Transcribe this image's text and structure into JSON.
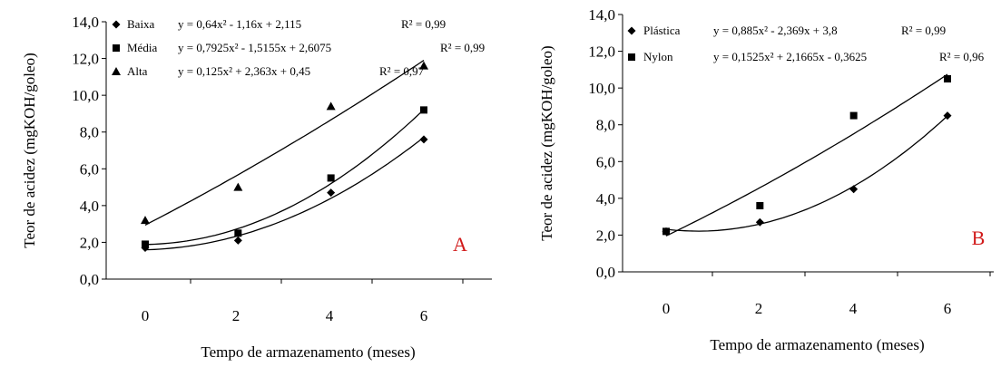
{
  "chart_data": [
    {
      "type": "scatter",
      "panel_label": "A",
      "xlabel": "Tempo de armazenamento (meses)",
      "ylabel": "Teor de acidez (mgKOH/goleo)",
      "x": [
        0,
        2,
        4,
        6
      ],
      "xticks": [
        "0",
        "2",
        "4",
        "6"
      ],
      "ylim": [
        0,
        14
      ],
      "yticks": [
        "0,0",
        "2,0",
        "4,0",
        "6,0",
        "8,0",
        "10,0",
        "12,0",
        "14,0"
      ],
      "grid": false,
      "legend_position": "top-left",
      "series": [
        {
          "name": "Baixa",
          "marker": "diamond",
          "values": [
            1.7,
            2.1,
            4.7,
            7.6
          ],
          "fit": [
            0.64,
            -1.16,
            2.115
          ],
          "equation": "y = 0,64x² - 1,16x + 2,115",
          "r2": "R² = 0,99"
        },
        {
          "name": "Média",
          "marker": "square",
          "values": [
            1.9,
            2.5,
            5.5,
            9.2
          ],
          "fit": [
            0.7925,
            -1.5155,
            2.6075
          ],
          "equation": "y = 0,7925x² - 1,5155x + 2,6075",
          "r2": "R² = 0,99"
        },
        {
          "name": "Alta",
          "marker": "triangle",
          "values": [
            3.2,
            5.0,
            9.4,
            11.6
          ],
          "fit": [
            0.125,
            2.363,
            0.45
          ],
          "equation": "y = 0,125x² + 2,363x + 0,45",
          "r2": "R² = 0,97"
        }
      ]
    },
    {
      "type": "scatter",
      "panel_label": "B",
      "xlabel": "Tempo de armazenamento (meses)",
      "ylabel": "Teor de acidez (mgKOH/goleo)",
      "x": [
        0,
        2,
        4,
        6
      ],
      "xticks": [
        "0",
        "2",
        "4",
        "6"
      ],
      "ylim": [
        0,
        14
      ],
      "yticks": [
        "0,0",
        "2,0",
        "4,0",
        "6,0",
        "8,0",
        "10,0",
        "12,0",
        "14,0"
      ],
      "grid": false,
      "legend_position": "top-left",
      "series": [
        {
          "name": "Plástica",
          "marker": "diamond",
          "values": [
            2.2,
            2.7,
            4.5,
            8.5
          ],
          "fit": [
            0.885,
            -2.369,
            3.8
          ],
          "equation": "y = 0,885x² - 2,369x + 3,8",
          "r2": "R² = 0,99"
        },
        {
          "name": "Nylon",
          "marker": "square",
          "values": [
            2.2,
            3.6,
            8.5,
            10.5
          ],
          "fit": [
            0.1525,
            2.1665,
            -0.3625
          ],
          "equation": "y = 0,1525x² + 2,1665x - 0,3625",
          "r2": "R² = 0,96"
        }
      ]
    }
  ]
}
